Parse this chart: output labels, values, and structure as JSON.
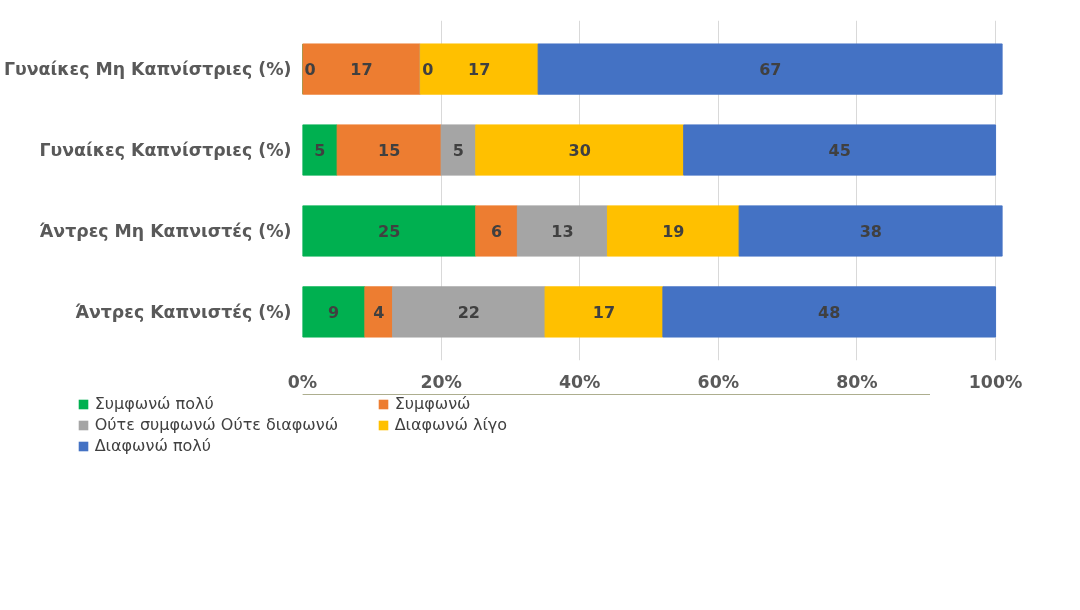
{
  "chart_data": {
    "type": "bar",
    "orientation": "horizontal",
    "stacked": true,
    "categories": [
      "Γυναίκες Μη Καπνίστριες (%)",
      "Γυναίκες Καπνίστριες (%)",
      "Άντρες Μη Καπνιστές (%)",
      "Άντρες Καπνιστές (%)"
    ],
    "series": [
      {
        "name": "Συμφωνώ πολύ",
        "color": "#00b050",
        "values": [
          0,
          5,
          25,
          9
        ]
      },
      {
        "name": "Συμφωνώ",
        "color": "#ed7d31",
        "values": [
          17,
          15,
          6,
          4
        ]
      },
      {
        "name": "Ούτε συμφωνώ Ούτε διαφωνώ",
        "color": "#a5a5a5",
        "values": [
          0,
          5,
          13,
          22
        ]
      },
      {
        "name": "Διαφωνώ λίγο",
        "color": "#ffc000",
        "values": [
          17,
          30,
          19,
          17
        ]
      },
      {
        "name": "Διαφωνώ πολύ",
        "color": "#4472c4",
        "values": [
          67,
          45,
          38,
          48
        ]
      }
    ],
    "xlim": [
      0,
      101
    ],
    "xticks": [
      {
        "value": 0,
        "label": "0%"
      },
      {
        "value": 20,
        "label": "20%"
      },
      {
        "value": 40,
        "label": "40%"
      },
      {
        "value": 60,
        "label": "60%"
      },
      {
        "value": 80,
        "label": "80%"
      },
      {
        "value": 100,
        "label": "100%"
      }
    ],
    "grid": "x",
    "legend": "bottom",
    "data_labels": true
  }
}
